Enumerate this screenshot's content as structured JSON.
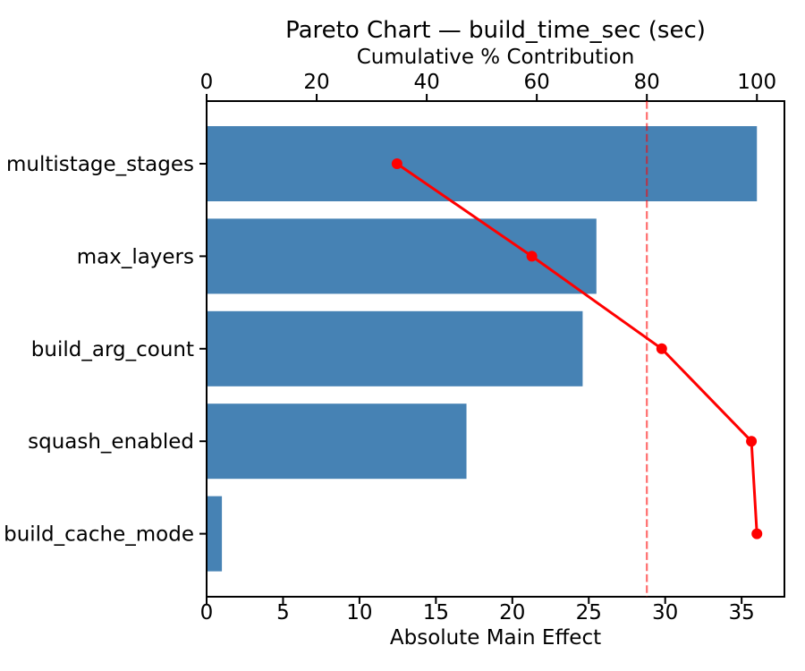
{
  "chart_data": {
    "type": "bar",
    "subtype": "pareto",
    "orientation": "horizontal",
    "title": "Pareto Chart — build_time_sec (sec)",
    "top_axis": {
      "label": "Cumulative % Contribution",
      "ticks": [
        0,
        20,
        40,
        60,
        80,
        100
      ],
      "range": [
        0,
        105
      ]
    },
    "bottom_axis": {
      "label": "Absolute Main Effect",
      "ticks": [
        0,
        5,
        10,
        15,
        20,
        25,
        30,
        35
      ],
      "range": [
        0,
        37.8
      ]
    },
    "categories": [
      "multistage_stages",
      "max_layers",
      "build_arg_count",
      "squash_enabled",
      "build_cache_mode"
    ],
    "series": [
      {
        "name": "absolute_main_effect",
        "type": "bar",
        "values": [
          36.0,
          25.5,
          24.6,
          17.0,
          1.0
        ]
      },
      {
        "name": "cumulative_pct",
        "type": "line",
        "values": [
          34.6,
          59.1,
          82.7,
          99.0,
          100.0
        ]
      }
    ],
    "threshold_pct": 80,
    "colors": {
      "bar": "#4682B4",
      "line": "#FF0000",
      "threshold": "rgba(255,0,0,0.55)",
      "axis": "#000000"
    },
    "grid": false,
    "legend": "none"
  }
}
